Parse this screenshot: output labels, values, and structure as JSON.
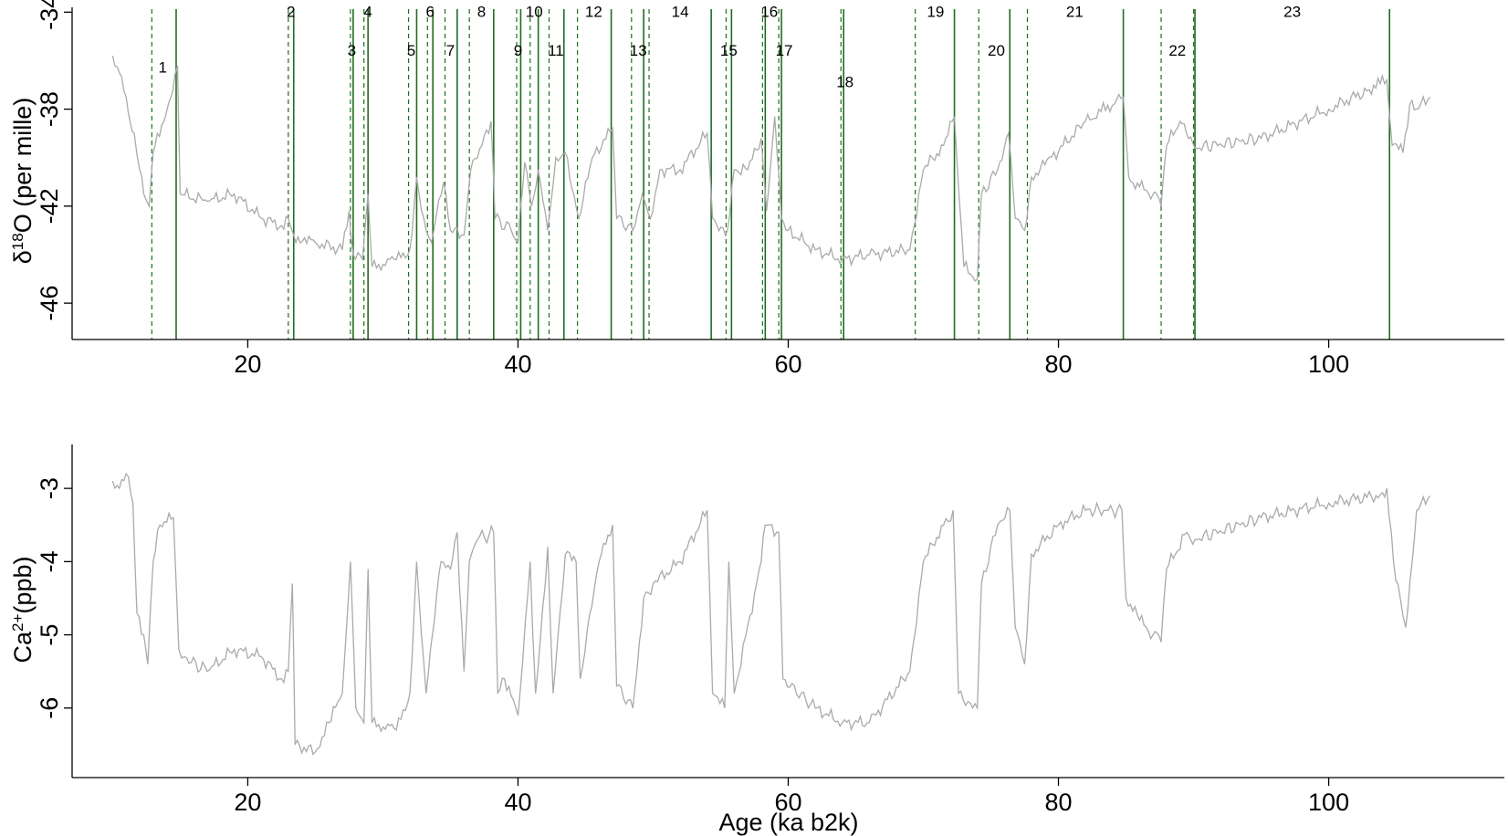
{
  "chart_data": [
    {
      "type": "line",
      "panel": "top",
      "title": "",
      "xlabel": "",
      "ylabel": "δ18O (per mille)",
      "ylabel_parts": {
        "pre": "δ",
        "sup": "18",
        "post": "O (per mille)"
      },
      "xlim": [
        7,
        113
      ],
      "ylim": [
        -47.5,
        -33.8
      ],
      "xticks": [
        20,
        40,
        60,
        80,
        100
      ],
      "yticks": [
        -34,
        -38,
        -42,
        -46
      ],
      "series": [
        {
          "color": "#aaaaaa",
          "x": [
            10.0,
            10.5,
            11.0,
            11.6,
            12.0,
            12.3,
            12.7,
            13.0,
            13.3,
            13.8,
            14.3,
            14.6,
            14.8,
            15.0,
            17.0,
            19.0,
            21.0,
            22.5,
            23.0,
            23.4,
            25.0,
            27.0,
            27.5,
            27.8,
            28.5,
            28.9,
            29.2,
            31.0,
            32.0,
            32.5,
            33.2,
            33.6,
            34.5,
            35.0,
            36.0,
            36.5,
            37.0,
            38.0,
            38.3,
            39.5,
            40.0,
            40.5,
            41.0,
            41.5,
            42.2,
            42.8,
            43.5,
            44.5,
            45.5,
            47.0,
            47.3,
            48.5,
            49.2,
            49.8,
            50.5,
            52.0,
            54.0,
            54.4,
            55.5,
            56.0,
            57.0,
            58.0,
            58.4,
            59.0,
            59.5,
            60.0,
            62.0,
            64.0,
            66.0,
            69.0,
            70.0,
            71.5,
            72.3,
            73.0,
            74.0,
            74.3,
            75.5,
            76.3,
            76.8,
            77.5,
            78.0,
            79.0,
            82.0,
            84.8,
            85.2,
            86.0,
            87.0,
            87.6,
            88.0,
            89.0,
            90.1,
            95.0,
            100.0,
            103.0,
            104.3,
            104.7,
            105.5,
            106.0,
            106.5,
            107.5
          ],
          "y": [
            -35.8,
            -36.5,
            -37.5,
            -39.0,
            -40.5,
            -41.5,
            -42.0,
            -39.8,
            -39.0,
            -38.5,
            -37.5,
            -36.6,
            -36.2,
            -41.5,
            -41.8,
            -41.5,
            -42.5,
            -42.8,
            -42.5,
            -43.2,
            -43.5,
            -43.8,
            -42.2,
            -44.0,
            -44.2,
            -41.5,
            -44.5,
            -44.2,
            -43.8,
            -40.8,
            -43.0,
            -43.5,
            -41.0,
            -43.0,
            -43.2,
            -40.5,
            -40.0,
            -38.5,
            -42.5,
            -43.0,
            -43.5,
            -40.2,
            -42.0,
            -40.5,
            -43.0,
            -40.0,
            -39.8,
            -42.5,
            -40.0,
            -38.8,
            -42.5,
            -43.0,
            -41.5,
            -42.5,
            -40.5,
            -40.5,
            -39.0,
            -42.5,
            -43.0,
            -40.5,
            -40.5,
            -39.2,
            -42.2,
            -38.3,
            -42.5,
            -43.0,
            -43.8,
            -44.2,
            -44.0,
            -43.8,
            -40.5,
            -39.5,
            -38.3,
            -44.5,
            -45.0,
            -41.5,
            -40.5,
            -39.0,
            -42.5,
            -43.0,
            -40.8,
            -40.3,
            -38.5,
            -37.5,
            -40.8,
            -41.2,
            -41.5,
            -42.0,
            -39.5,
            -38.5,
            -39.6,
            -39.2,
            -38.0,
            -37.2,
            -36.8,
            -39.5,
            -39.8,
            -37.8,
            -38.0,
            -37.5
          ]
        }
      ],
      "event_lines": [
        {
          "x": 12.9,
          "style": "dashed"
        },
        {
          "x": 14.7,
          "style": "solid"
        },
        {
          "x": 23.0,
          "style": "dashed"
        },
        {
          "x": 23.4,
          "style": "solid"
        },
        {
          "x": 27.6,
          "style": "dashed"
        },
        {
          "x": 27.8,
          "style": "solid"
        },
        {
          "x": 28.6,
          "style": "dashed"
        },
        {
          "x": 28.9,
          "style": "solid"
        },
        {
          "x": 31.9,
          "style": "dashed"
        },
        {
          "x": 32.5,
          "style": "solid"
        },
        {
          "x": 33.3,
          "style": "dashed"
        },
        {
          "x": 33.7,
          "style": "solid"
        },
        {
          "x": 34.6,
          "style": "dashed"
        },
        {
          "x": 35.5,
          "style": "solid"
        },
        {
          "x": 36.4,
          "style": "dashed"
        },
        {
          "x": 38.2,
          "style": "solid"
        },
        {
          "x": 39.9,
          "style": "dashed"
        },
        {
          "x": 40.2,
          "style": "solid"
        },
        {
          "x": 40.9,
          "style": "dashed"
        },
        {
          "x": 41.5,
          "style": "solid"
        },
        {
          "x": 42.3,
          "style": "dashed"
        },
        {
          "x": 43.4,
          "style": "solid"
        },
        {
          "x": 44.4,
          "style": "dashed"
        },
        {
          "x": 46.9,
          "style": "solid"
        },
        {
          "x": 48.4,
          "style": "dashed"
        },
        {
          "x": 49.3,
          "style": "solid"
        },
        {
          "x": 49.7,
          "style": "dashed"
        },
        {
          "x": 54.3,
          "style": "solid"
        },
        {
          "x": 55.4,
          "style": "dashed"
        },
        {
          "x": 55.8,
          "style": "solid"
        },
        {
          "x": 58.1,
          "style": "dashed"
        },
        {
          "x": 58.3,
          "style": "solid"
        },
        {
          "x": 59.3,
          "style": "dashed"
        },
        {
          "x": 59.5,
          "style": "solid"
        },
        {
          "x": 63.9,
          "style": "dashed"
        },
        {
          "x": 64.1,
          "style": "solid"
        },
        {
          "x": 69.4,
          "style": "dashed"
        },
        {
          "x": 72.3,
          "style": "solid"
        },
        {
          "x": 74.1,
          "style": "dashed"
        },
        {
          "x": 76.4,
          "style": "solid"
        },
        {
          "x": 77.7,
          "style": "dashed"
        },
        {
          "x": 84.8,
          "style": "solid"
        },
        {
          "x": 87.6,
          "style": "dashed"
        },
        {
          "x": 90.0,
          "style": "dashed"
        },
        {
          "x": 90.1,
          "style": "solid"
        },
        {
          "x": 104.5,
          "style": "solid"
        }
      ],
      "event_labels": [
        {
          "text": "1",
          "x": 13.7,
          "y": -36.5
        },
        {
          "text": "2",
          "x": 23.2,
          "y": -34.2
        },
        {
          "text": "3",
          "x": 27.7,
          "y": -35.8
        },
        {
          "text": "4",
          "x": 28.9,
          "y": -34.2
        },
        {
          "text": "5",
          "x": 32.1,
          "y": -35.8
        },
        {
          "text": "6",
          "x": 33.5,
          "y": -34.2
        },
        {
          "text": "7",
          "x": 35.0,
          "y": -35.8
        },
        {
          "text": "8",
          "x": 37.3,
          "y": -34.2
        },
        {
          "text": "9",
          "x": 40.0,
          "y": -35.8
        },
        {
          "text": "10",
          "x": 41.2,
          "y": -34.2
        },
        {
          "text": "11",
          "x": 42.8,
          "y": -35.8
        },
        {
          "text": "12",
          "x": 45.6,
          "y": -34.2
        },
        {
          "text": "13",
          "x": 48.9,
          "y": -35.8
        },
        {
          "text": "14",
          "x": 52.0,
          "y": -34.2
        },
        {
          "text": "15",
          "x": 55.6,
          "y": -35.8
        },
        {
          "text": "16",
          "x": 58.6,
          "y": -34.2
        },
        {
          "text": "17",
          "x": 59.7,
          "y": -35.8
        },
        {
          "text": "18",
          "x": 64.2,
          "y": -37.1
        },
        {
          "text": "19",
          "x": 70.9,
          "y": -34.2
        },
        {
          "text": "20",
          "x": 75.4,
          "y": -35.8
        },
        {
          "text": "21",
          "x": 81.2,
          "y": -34.2
        },
        {
          "text": "22",
          "x": 88.8,
          "y": -35.8
        },
        {
          "text": "23",
          "x": 97.3,
          "y": -34.2
        }
      ]
    },
    {
      "type": "line",
      "panel": "bottom",
      "title": "",
      "xlabel": "Age (ka b2k)",
      "ylabel": "Ca2+(ppb)",
      "ylabel_parts": {
        "pre": "Ca",
        "sup": "2+",
        "post": "(ppb)"
      },
      "xlim": [
        7,
        113
      ],
      "ylim": [
        -6.95,
        -2.4
      ],
      "xticks": [
        20,
        40,
        60,
        80,
        100
      ],
      "yticks": [
        -3,
        -4,
        -5,
        -6
      ],
      "series": [
        {
          "color": "#aaaaaa",
          "x": [
            10.0,
            10.5,
            11.0,
            11.5,
            11.8,
            12.3,
            12.6,
            13.0,
            13.5,
            14.5,
            14.9,
            15.3,
            17.0,
            19.0,
            21.0,
            22.5,
            23.0,
            23.3,
            23.5,
            25.0,
            26.0,
            27.0,
            27.6,
            28.0,
            28.6,
            28.9,
            29.2,
            31.0,
            32.0,
            32.5,
            33.2,
            34.3,
            35.0,
            35.5,
            36.0,
            36.4,
            37.0,
            38.2,
            38.5,
            39.0,
            40.0,
            40.9,
            41.3,
            42.2,
            42.6,
            43.5,
            44.3,
            44.6,
            46.0,
            47.0,
            47.3,
            48.5,
            49.3,
            50.0,
            52.0,
            54.0,
            54.4,
            55.3,
            55.6,
            56.0,
            58.0,
            58.3,
            59.3,
            59.6,
            62.0,
            64.0,
            66.0,
            69.0,
            70.0,
            71.5,
            72.2,
            72.6,
            74.0,
            74.3,
            75.5,
            76.4,
            76.8,
            77.5,
            78.0,
            80.0,
            82.0,
            84.7,
            85.0,
            86.0,
            87.0,
            87.6,
            88.0,
            89.5,
            90.1,
            95.0,
            100.0,
            103.5,
            104.3,
            104.8,
            105.3,
            105.7,
            106.5,
            107.5
          ],
          "y": [
            -2.9,
            -3.0,
            -2.8,
            -3.2,
            -4.7,
            -5.0,
            -5.4,
            -4.0,
            -3.5,
            -3.4,
            -5.2,
            -5.3,
            -5.5,
            -5.2,
            -5.3,
            -5.6,
            -5.5,
            -4.3,
            -6.5,
            -6.6,
            -6.2,
            -5.8,
            -4.0,
            -6.0,
            -6.2,
            -4.1,
            -6.2,
            -6.3,
            -5.8,
            -4.0,
            -5.8,
            -4.0,
            -4.1,
            -3.6,
            -5.5,
            -4.0,
            -3.7,
            -3.6,
            -5.8,
            -5.6,
            -6.1,
            -4.0,
            -5.8,
            -3.8,
            -5.8,
            -3.9,
            -4.0,
            -5.6,
            -4.0,
            -3.5,
            -5.7,
            -6.0,
            -4.5,
            -4.3,
            -4.0,
            -3.3,
            -5.8,
            -6.0,
            -4.0,
            -5.8,
            -4.0,
            -3.5,
            -3.6,
            -5.6,
            -6.0,
            -6.2,
            -6.2,
            -5.5,
            -4.0,
            -3.5,
            -3.3,
            -5.8,
            -6.0,
            -4.3,
            -3.5,
            -3.3,
            -4.9,
            -5.4,
            -3.9,
            -3.5,
            -3.3,
            -3.3,
            -4.5,
            -4.8,
            -5.0,
            -5.1,
            -4.1,
            -3.6,
            -3.7,
            -3.4,
            -3.2,
            -3.1,
            -3.0,
            -4.0,
            -4.5,
            -4.9,
            -3.3,
            -3.1
          ]
        }
      ]
    }
  ]
}
